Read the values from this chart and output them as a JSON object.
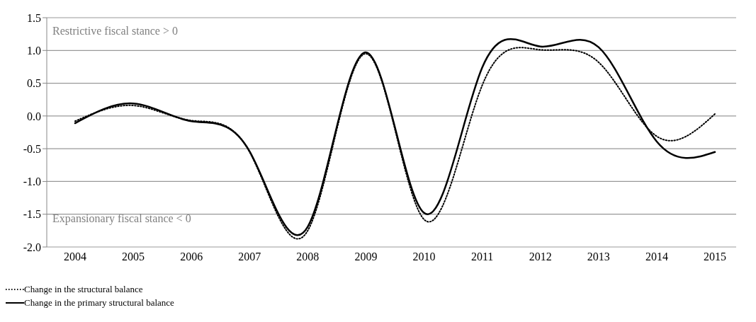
{
  "chart_data": {
    "type": "line",
    "categories": [
      "2004",
      "2005",
      "2006",
      "2007",
      "2008",
      "2009",
      "2010",
      "2011",
      "2012",
      "2013",
      "2014",
      "2015"
    ],
    "series": [
      {
        "name": "Change in the structural balance",
        "color": "#000000",
        "line_style": "dotted",
        "values": [
          -0.08,
          0.16,
          -0.07,
          -0.55,
          -1.75,
          0.95,
          -1.58,
          0.47,
          1.01,
          0.82,
          -0.31,
          0.03
        ]
      },
      {
        "name": "Change in the primary structural balance",
        "color": "#000000",
        "line_style": "solid",
        "values": [
          -0.11,
          0.19,
          -0.08,
          -0.54,
          -1.69,
          0.97,
          -1.48,
          0.74,
          1.06,
          1.05,
          -0.39,
          -0.55
        ]
      }
    ],
    "ylim": [
      -2.0,
      1.5
    ],
    "yticks": [
      {
        "value": -2,
        "label": "-2.0"
      },
      {
        "value": -1.5,
        "label": "-1.5"
      },
      {
        "value": -1,
        "label": "-1.0"
      },
      {
        "value": -0.5,
        "label": "-0.5"
      },
      {
        "value": 0,
        "label": "0.0"
      },
      {
        "value": 0.5,
        "label": "0.5"
      },
      {
        "value": 1,
        "label": "1.0"
      },
      {
        "value": 1.5,
        "label": "1.5"
      }
    ],
    "grid": "y",
    "legend": "bottom left",
    "marker": "none",
    "annotations": [
      "Restrictive fiscal stance > 0",
      "Expansionary fiscal stance < 0"
    ]
  }
}
